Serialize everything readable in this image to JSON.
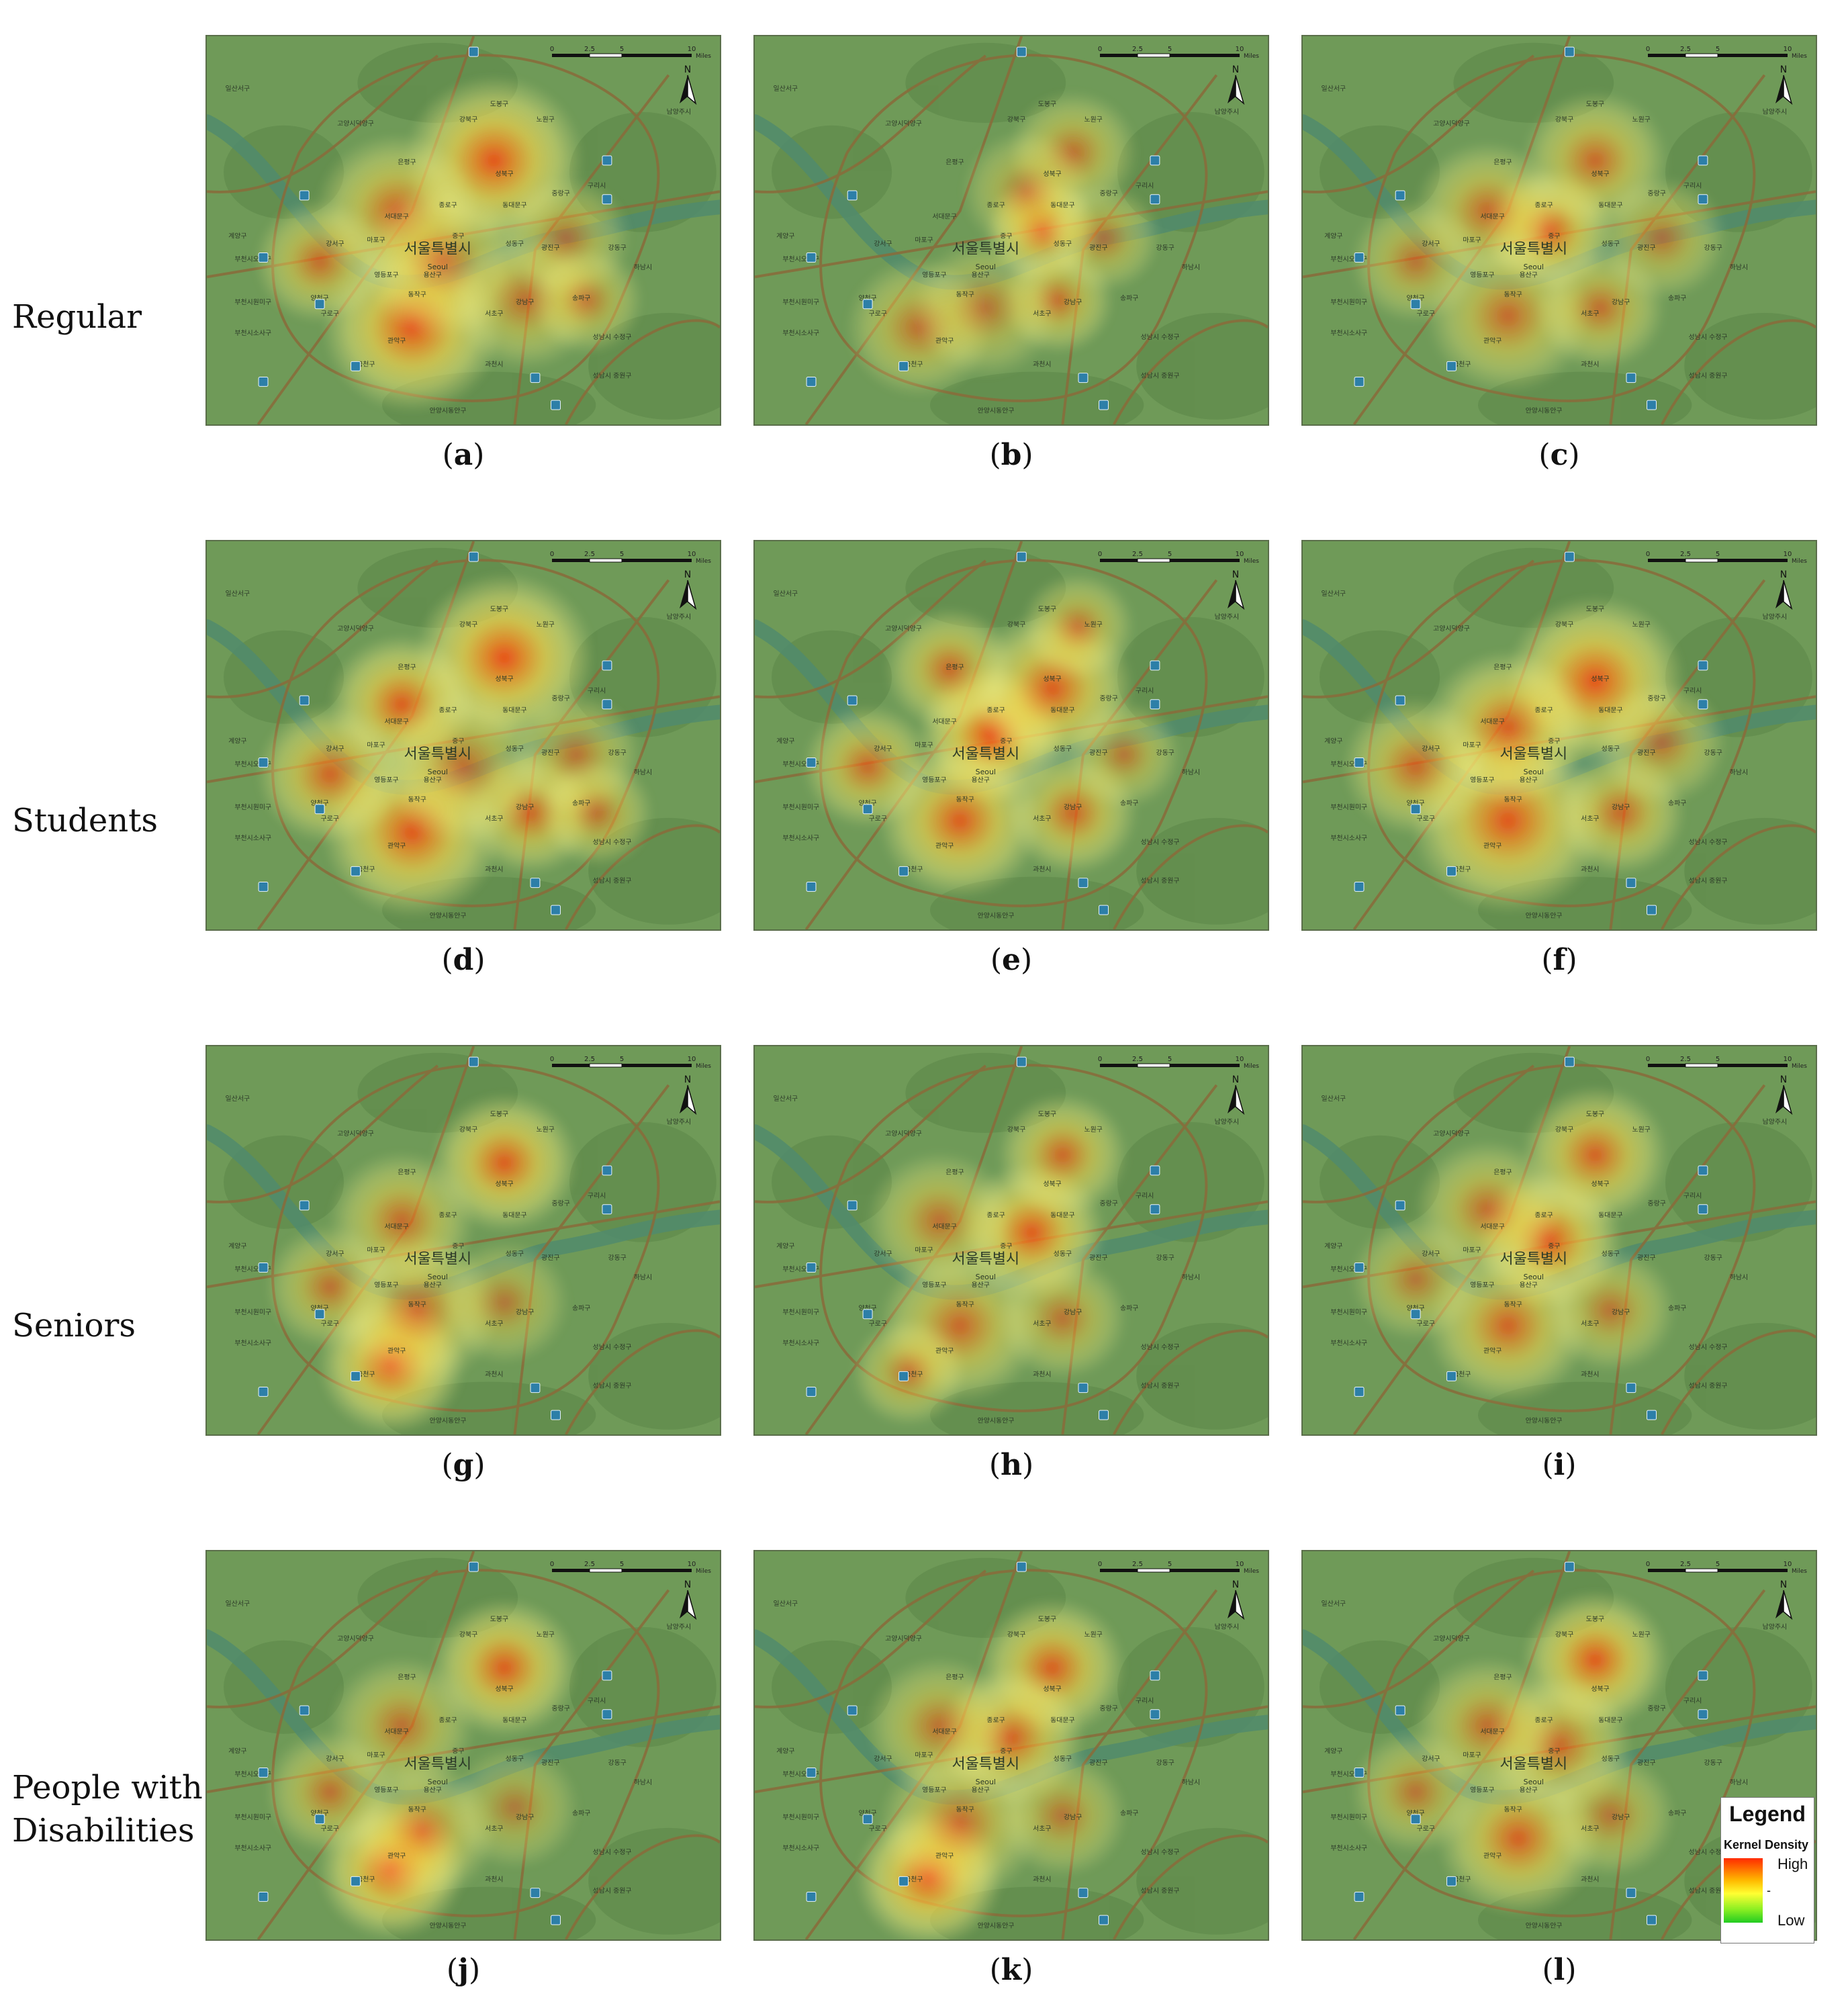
{
  "rows": [
    {
      "label_lines": [
        "Regular"
      ]
    },
    {
      "label_lines": [
        "Students"
      ]
    },
    {
      "label_lines": [
        "Seniors"
      ]
    },
    {
      "label_lines": [
        "People with",
        "Disabilities"
      ]
    }
  ],
  "map_labels": {
    "center_city_ko": "서울특별시",
    "center_city_en": "Seoul",
    "districts": [
      "도봉구",
      "노원구",
      "강북구",
      "성북구",
      "중랑구",
      "은평구",
      "서대문구",
      "종로구",
      "동대문구",
      "마포구",
      "중구",
      "성동구",
      "광진구",
      "강서구",
      "영등포구",
      "동작구",
      "강남구",
      "송파구",
      "강동구",
      "구로구",
      "관악구",
      "서초구",
      "금천구",
      "양천구",
      "용산구",
      "과천시",
      "구리시",
      "하남시",
      "고양시덕양구",
      "부천시오정구",
      "부천시원미구",
      "부천시소사구",
      "계양구",
      "성남시 수정구",
      "성남시 중원구",
      "안양시동안구",
      "남양주시",
      "일산서구"
    ]
  },
  "scale_bar": {
    "ticks": [
      "0",
      "2.5",
      "5",
      "10"
    ],
    "unit": "Miles"
  },
  "north_label": "N",
  "panels": [
    {
      "id": "a",
      "caption_open": "(",
      "caption_letter": "a",
      "caption_close": ")",
      "hotspots": [
        {
          "lon": 0.56,
          "lat": 0.32,
          "intensity": 0.95,
          "spread": 0.11
        },
        {
          "lon": 0.4,
          "lat": 0.75,
          "intensity": 0.95,
          "spread": 0.11
        },
        {
          "lon": 0.37,
          "lat": 0.45,
          "intensity": 0.65,
          "spread": 0.1
        },
        {
          "lon": 0.22,
          "lat": 0.58,
          "intensity": 0.55,
          "spread": 0.08
        },
        {
          "lon": 0.46,
          "lat": 0.58,
          "intensity": 0.45,
          "spread": 0.1
        },
        {
          "lon": 0.62,
          "lat": 0.68,
          "intensity": 0.45,
          "spread": 0.09
        },
        {
          "lon": 0.7,
          "lat": 0.52,
          "intensity": 0.35,
          "spread": 0.08
        },
        {
          "lon": 0.74,
          "lat": 0.68,
          "intensity": 0.4,
          "spread": 0.07
        }
      ]
    },
    {
      "id": "b",
      "caption_open": "(",
      "caption_letter": "b",
      "caption_close": ")",
      "hotspots": [
        {
          "lon": 0.56,
          "lat": 0.5,
          "intensity": 0.85,
          "spread": 0.07
        },
        {
          "lon": 0.62,
          "lat": 0.3,
          "intensity": 0.45,
          "spread": 0.08
        },
        {
          "lon": 0.32,
          "lat": 0.75,
          "intensity": 0.45,
          "spread": 0.09
        },
        {
          "lon": 0.59,
          "lat": 0.68,
          "intensity": 0.55,
          "spread": 0.07
        },
        {
          "lon": 0.45,
          "lat": 0.7,
          "intensity": 0.35,
          "spread": 0.09
        },
        {
          "lon": 0.68,
          "lat": 0.52,
          "intensity": 0.35,
          "spread": 0.07
        },
        {
          "lon": 0.53,
          "lat": 0.4,
          "intensity": 0.3,
          "spread": 0.08
        }
      ]
    },
    {
      "id": "c",
      "caption_open": "(",
      "caption_letter": "c",
      "caption_close": ")",
      "hotspots": [
        {
          "lon": 0.48,
          "lat": 0.5,
          "intensity": 0.85,
          "spread": 0.08
        },
        {
          "lon": 0.57,
          "lat": 0.32,
          "intensity": 0.6,
          "spread": 0.09
        },
        {
          "lon": 0.36,
          "lat": 0.45,
          "intensity": 0.55,
          "spread": 0.09
        },
        {
          "lon": 0.4,
          "lat": 0.72,
          "intensity": 0.55,
          "spread": 0.1
        },
        {
          "lon": 0.58,
          "lat": 0.7,
          "intensity": 0.5,
          "spread": 0.08
        },
        {
          "lon": 0.22,
          "lat": 0.58,
          "intensity": 0.4,
          "spread": 0.08
        },
        {
          "lon": 0.7,
          "lat": 0.52,
          "intensity": 0.35,
          "spread": 0.08
        }
      ]
    },
    {
      "id": "d",
      "caption_open": "(",
      "caption_letter": "d",
      "caption_close": ")",
      "hotspots": [
        {
          "lon": 0.58,
          "lat": 0.3,
          "intensity": 1.0,
          "spread": 0.11
        },
        {
          "lon": 0.4,
          "lat": 0.75,
          "intensity": 0.9,
          "spread": 0.11
        },
        {
          "lon": 0.38,
          "lat": 0.42,
          "intensity": 0.85,
          "spread": 0.09
        },
        {
          "lon": 0.24,
          "lat": 0.6,
          "intensity": 0.7,
          "spread": 0.09
        },
        {
          "lon": 0.63,
          "lat": 0.7,
          "intensity": 0.65,
          "spread": 0.08
        },
        {
          "lon": 0.5,
          "lat": 0.58,
          "intensity": 0.45,
          "spread": 0.1
        },
        {
          "lon": 0.72,
          "lat": 0.55,
          "intensity": 0.4,
          "spread": 0.08
        },
        {
          "lon": 0.76,
          "lat": 0.7,
          "intensity": 0.45,
          "spread": 0.07
        }
      ]
    },
    {
      "id": "e",
      "caption_open": "(",
      "caption_letter": "e",
      "caption_close": ")",
      "hotspots": [
        {
          "lon": 0.46,
          "lat": 0.5,
          "intensity": 1.0,
          "spread": 0.09
        },
        {
          "lon": 0.58,
          "lat": 0.38,
          "intensity": 0.85,
          "spread": 0.1
        },
        {
          "lon": 0.4,
          "lat": 0.72,
          "intensity": 0.85,
          "spread": 0.1
        },
        {
          "lon": 0.38,
          "lat": 0.33,
          "intensity": 0.6,
          "spread": 0.08
        },
        {
          "lon": 0.62,
          "lat": 0.7,
          "intensity": 0.65,
          "spread": 0.08
        },
        {
          "lon": 0.22,
          "lat": 0.58,
          "intensity": 0.6,
          "spread": 0.08
        },
        {
          "lon": 0.63,
          "lat": 0.22,
          "intensity": 0.45,
          "spread": 0.07
        },
        {
          "lon": 0.72,
          "lat": 0.55,
          "intensity": 0.35,
          "spread": 0.07
        }
      ]
    },
    {
      "id": "f",
      "caption_open": "(",
      "caption_letter": "f",
      "caption_close": ")",
      "hotspots": [
        {
          "lon": 0.57,
          "lat": 0.36,
          "intensity": 0.95,
          "spread": 0.11
        },
        {
          "lon": 0.4,
          "lat": 0.72,
          "intensity": 0.9,
          "spread": 0.12
        },
        {
          "lon": 0.4,
          "lat": 0.48,
          "intensity": 0.8,
          "spread": 0.1
        },
        {
          "lon": 0.22,
          "lat": 0.58,
          "intensity": 0.6,
          "spread": 0.09
        },
        {
          "lon": 0.62,
          "lat": 0.7,
          "intensity": 0.6,
          "spread": 0.08
        },
        {
          "lon": 0.7,
          "lat": 0.52,
          "intensity": 0.4,
          "spread": 0.08
        }
      ]
    },
    {
      "id": "g",
      "caption_open": "(",
      "caption_letter": "g",
      "caption_close": ")",
      "hotspots": [
        {
          "lon": 0.58,
          "lat": 0.3,
          "intensity": 0.85,
          "spread": 0.09
        },
        {
          "lon": 0.36,
          "lat": 0.82,
          "intensity": 0.95,
          "spread": 0.09
        },
        {
          "lon": 0.41,
          "lat": 0.68,
          "intensity": 0.55,
          "spread": 0.1
        },
        {
          "lon": 0.38,
          "lat": 0.45,
          "intensity": 0.55,
          "spread": 0.09
        },
        {
          "lon": 0.24,
          "lat": 0.62,
          "intensity": 0.45,
          "spread": 0.08
        },
        {
          "lon": 0.58,
          "lat": 0.66,
          "intensity": 0.3,
          "spread": 0.08
        }
      ]
    },
    {
      "id": "h",
      "caption_open": "(",
      "caption_letter": "h",
      "caption_close": ")",
      "hotspots": [
        {
          "lon": 0.54,
          "lat": 0.48,
          "intensity": 0.9,
          "spread": 0.09
        },
        {
          "lon": 0.6,
          "lat": 0.28,
          "intensity": 0.65,
          "spread": 0.08
        },
        {
          "lon": 0.4,
          "lat": 0.72,
          "intensity": 0.6,
          "spread": 0.1
        },
        {
          "lon": 0.36,
          "lat": 0.45,
          "intensity": 0.45,
          "spread": 0.09
        },
        {
          "lon": 0.6,
          "lat": 0.7,
          "intensity": 0.4,
          "spread": 0.08
        },
        {
          "lon": 0.3,
          "lat": 0.84,
          "intensity": 0.45,
          "spread": 0.07
        }
      ]
    },
    {
      "id": "i",
      "caption_open": "(",
      "caption_letter": "i",
      "caption_close": ")",
      "hotspots": [
        {
          "lon": 0.48,
          "lat": 0.5,
          "intensity": 0.9,
          "spread": 0.09
        },
        {
          "lon": 0.57,
          "lat": 0.28,
          "intensity": 0.75,
          "spread": 0.09
        },
        {
          "lon": 0.4,
          "lat": 0.72,
          "intensity": 0.7,
          "spread": 0.1
        },
        {
          "lon": 0.36,
          "lat": 0.42,
          "intensity": 0.5,
          "spread": 0.09
        },
        {
          "lon": 0.6,
          "lat": 0.68,
          "intensity": 0.4,
          "spread": 0.08
        },
        {
          "lon": 0.22,
          "lat": 0.6,
          "intensity": 0.35,
          "spread": 0.08
        }
      ]
    },
    {
      "id": "j",
      "caption_open": "(",
      "caption_letter": "j",
      "caption_close": ")",
      "hotspots": [
        {
          "lon": 0.58,
          "lat": 0.3,
          "intensity": 0.85,
          "spread": 0.09
        },
        {
          "lon": 0.36,
          "lat": 0.82,
          "intensity": 1.0,
          "spread": 0.09
        },
        {
          "lon": 0.42,
          "lat": 0.72,
          "intensity": 0.55,
          "spread": 0.09
        },
        {
          "lon": 0.38,
          "lat": 0.45,
          "intensity": 0.45,
          "spread": 0.09
        },
        {
          "lon": 0.24,
          "lat": 0.62,
          "intensity": 0.45,
          "spread": 0.08
        },
        {
          "lon": 0.6,
          "lat": 0.66,
          "intensity": 0.25,
          "spread": 0.08
        }
      ]
    },
    {
      "id": "k",
      "caption_open": "(",
      "caption_letter": "k",
      "caption_close": ")",
      "hotspots": [
        {
          "lon": 0.34,
          "lat": 0.84,
          "intensity": 1.0,
          "spread": 0.09
        },
        {
          "lon": 0.58,
          "lat": 0.3,
          "intensity": 0.8,
          "spread": 0.09
        },
        {
          "lon": 0.5,
          "lat": 0.48,
          "intensity": 0.75,
          "spread": 0.09
        },
        {
          "lon": 0.4,
          "lat": 0.7,
          "intensity": 0.55,
          "spread": 0.1
        },
        {
          "lon": 0.36,
          "lat": 0.45,
          "intensity": 0.45,
          "spread": 0.09
        },
        {
          "lon": 0.6,
          "lat": 0.68,
          "intensity": 0.35,
          "spread": 0.08
        }
      ]
    },
    {
      "id": "l",
      "caption_open": "(",
      "caption_letter": "l",
      "caption_close": ")",
      "hotspots": [
        {
          "lon": 0.57,
          "lat": 0.28,
          "intensity": 0.9,
          "spread": 0.09
        },
        {
          "lon": 0.42,
          "lat": 0.74,
          "intensity": 0.75,
          "spread": 0.1
        },
        {
          "lon": 0.5,
          "lat": 0.5,
          "intensity": 0.6,
          "spread": 0.09
        },
        {
          "lon": 0.36,
          "lat": 0.45,
          "intensity": 0.5,
          "spread": 0.09
        },
        {
          "lon": 0.22,
          "lat": 0.62,
          "intensity": 0.4,
          "spread": 0.08
        },
        {
          "lon": 0.6,
          "lat": 0.68,
          "intensity": 0.35,
          "spread": 0.08
        }
      ]
    }
  ],
  "legend": {
    "title": "Legend",
    "subtitle": "Kernel Density",
    "high": "High",
    "low": "Low",
    "dash": "-",
    "colors": [
      "#ff2a00",
      "#ffbb00",
      "#ffff33",
      "#88ee22",
      "#22cc22"
    ]
  },
  "colors": {
    "map_base": "#6f9a58",
    "river": "#4f8a6e",
    "road": "#8a6b3a",
    "label": "#2c3a28"
  }
}
